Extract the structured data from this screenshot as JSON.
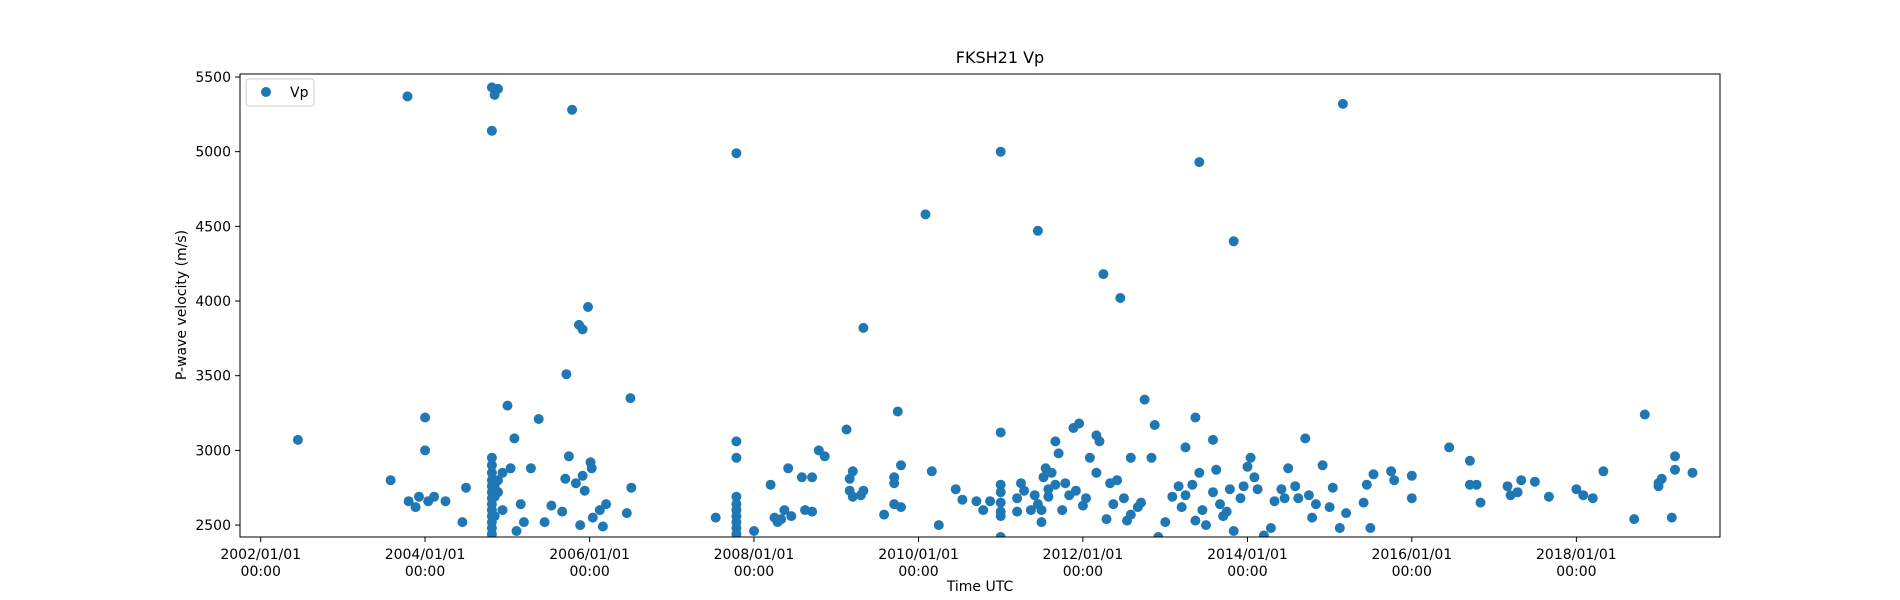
{
  "chart_data": {
    "type": "scatter",
    "title": "FKSH21 Vp",
    "xlabel": "Time UTC",
    "ylabel": "P-wave velocity (m/s)",
    "x_axis_type": "date",
    "xlim": [
      "2001-10-01",
      "2019-10-01"
    ],
    "ylim": [
      2420,
      5520
    ],
    "x_ticks": [
      {
        "date": "2002-01-01",
        "label": [
          "2002/01/01",
          "00:00"
        ]
      },
      {
        "date": "2004-01-01",
        "label": [
          "2004/01/01",
          "00:00"
        ]
      },
      {
        "date": "2006-01-01",
        "label": [
          "2006/01/01",
          "00:00"
        ]
      },
      {
        "date": "2008-01-01",
        "label": [
          "2008/01/01",
          "00:00"
        ]
      },
      {
        "date": "2010-01-01",
        "label": [
          "2010/01/01",
          "00:00"
        ]
      },
      {
        "date": "2012-01-01",
        "label": [
          "2012/01/01",
          "00:00"
        ]
      },
      {
        "date": "2014-01-01",
        "label": [
          "2014/01/01",
          "00:00"
        ]
      },
      {
        "date": "2016-01-01",
        "label": [
          "2016/01/01",
          "00:00"
        ]
      },
      {
        "date": "2018-01-01",
        "label": [
          "2018/01/01",
          "00:00"
        ]
      }
    ],
    "y_ticks": [
      2500,
      3000,
      3500,
      4000,
      4500,
      5000,
      5500
    ],
    "grid": false,
    "legend": {
      "position": "top-left",
      "entries": [
        "Vp"
      ]
    },
    "color": "#1f77b4",
    "series": [
      {
        "name": "Vp",
        "points": [
          [
            "2002-06-15",
            3070
          ],
          [
            "2003-08-01",
            2800
          ],
          [
            "2003-10-15",
            5370
          ],
          [
            "2003-10-20",
            2660
          ],
          [
            "2003-11-20",
            2620
          ],
          [
            "2003-12-05",
            2690
          ],
          [
            "2004-01-01",
            3220
          ],
          [
            "2004-01-01",
            3000
          ],
          [
            "2004-01-15",
            2660
          ],
          [
            "2004-02-10",
            2690
          ],
          [
            "2004-04-01",
            2660
          ],
          [
            "2004-06-15",
            2520
          ],
          [
            "2004-07-01",
            2750
          ],
          [
            "2004-10-24",
            5430
          ],
          [
            "2004-10-24",
            5140
          ],
          [
            "2004-10-24",
            2950
          ],
          [
            "2004-10-24",
            2900
          ],
          [
            "2004-10-24",
            2850
          ],
          [
            "2004-10-24",
            2800
          ],
          [
            "2004-10-24",
            2760
          ],
          [
            "2004-10-24",
            2720
          ],
          [
            "2004-10-24",
            2680
          ],
          [
            "2004-10-24",
            2640
          ],
          [
            "2004-10-24",
            2600
          ],
          [
            "2004-10-24",
            2560
          ],
          [
            "2004-10-24",
            2520
          ],
          [
            "2004-10-24",
            2480
          ],
          [
            "2004-10-24",
            2440
          ],
          [
            "2004-11-05",
            5380
          ],
          [
            "2004-11-05",
            2760
          ],
          [
            "2004-11-05",
            2690
          ],
          [
            "2004-11-05",
            2560
          ],
          [
            "2004-11-20",
            5420
          ],
          [
            "2004-11-20",
            2800
          ],
          [
            "2004-11-20",
            2720
          ],
          [
            "2004-12-10",
            2850
          ],
          [
            "2004-12-10",
            2600
          ],
          [
            "2005-01-01",
            3300
          ],
          [
            "2005-01-15",
            2880
          ],
          [
            "2005-02-01",
            3080
          ],
          [
            "2005-02-10",
            2460
          ],
          [
            "2005-03-01",
            2640
          ],
          [
            "2005-03-15",
            2520
          ],
          [
            "2005-04-15",
            2880
          ],
          [
            "2005-05-20",
            3210
          ],
          [
            "2005-06-15",
            2520
          ],
          [
            "2005-07-15",
            2630
          ],
          [
            "2005-09-01",
            2590
          ],
          [
            "2005-09-15",
            2810
          ],
          [
            "2005-09-20",
            3510
          ],
          [
            "2005-10-01",
            2960
          ],
          [
            "2005-10-15",
            5280
          ],
          [
            "2005-11-01",
            2780
          ],
          [
            "2005-11-15",
            3840
          ],
          [
            "2005-11-20",
            2500
          ],
          [
            "2005-12-01",
            2830
          ],
          [
            "2005-12-01",
            3810
          ],
          [
            "2005-12-10",
            2730
          ],
          [
            "2006-02-15",
            2600
          ],
          [
            "2005-12-25",
            3960
          ],
          [
            "2006-01-05",
            2920
          ],
          [
            "2006-01-10",
            2880
          ],
          [
            "2006-01-15",
            2550
          ],
          [
            "2006-03-01",
            2490
          ],
          [
            "2006-03-15",
            2640
          ],
          [
            "2006-06-15",
            2580
          ],
          [
            "2006-07-01",
            3350
          ],
          [
            "2006-07-05",
            2750
          ],
          [
            "2007-07-15",
            2550
          ],
          [
            "2007-10-15",
            4990
          ],
          [
            "2007-10-15",
            3060
          ],
          [
            "2007-10-15",
            2950
          ],
          [
            "2007-10-15",
            2690
          ],
          [
            "2007-10-15",
            2640
          ],
          [
            "2007-10-15",
            2600
          ],
          [
            "2007-10-15",
            2560
          ],
          [
            "2007-10-15",
            2520
          ],
          [
            "2007-10-15",
            2480
          ],
          [
            "2007-10-15",
            2440
          ],
          [
            "2008-01-01",
            2460
          ],
          [
            "2008-03-15",
            2770
          ],
          [
            "2008-04-01",
            2550
          ],
          [
            "2008-04-15",
            2520
          ],
          [
            "2008-05-01",
            2540
          ],
          [
            "2008-05-15",
            2600
          ],
          [
            "2008-06-01",
            2880
          ],
          [
            "2008-06-15",
            2560
          ],
          [
            "2008-08-01",
            2820
          ],
          [
            "2008-08-15",
            2600
          ],
          [
            "2008-09-15",
            2590
          ],
          [
            "2008-09-15",
            2820
          ],
          [
            "2008-10-15",
            3000
          ],
          [
            "2008-11-10",
            2960
          ],
          [
            "2009-02-15",
            3140
          ],
          [
            "2009-03-01",
            2810
          ],
          [
            "2009-03-01",
            2730
          ],
          [
            "2009-03-15",
            2860
          ],
          [
            "2009-03-15",
            2690
          ],
          [
            "2009-04-20",
            2700
          ],
          [
            "2009-05-01",
            2730
          ],
          [
            "2009-05-01",
            3820
          ],
          [
            "2009-08-01",
            2570
          ],
          [
            "2009-09-15",
            2640
          ],
          [
            "2009-09-15",
            2820
          ],
          [
            "2009-09-15",
            2780
          ],
          [
            "2009-10-01",
            3260
          ],
          [
            "2009-10-15",
            2620
          ],
          [
            "2009-10-15",
            2900
          ],
          [
            "2010-02-01",
            4580
          ],
          [
            "2010-03-01",
            2860
          ],
          [
            "2010-04-01",
            2500
          ],
          [
            "2010-06-15",
            2740
          ],
          [
            "2010-07-15",
            2670
          ],
          [
            "2010-09-15",
            2660
          ],
          [
            "2010-10-15",
            2600
          ],
          [
            "2010-11-15",
            2660
          ],
          [
            "2011-01-01",
            5000
          ],
          [
            "2011-01-01",
            3120
          ],
          [
            "2011-01-01",
            2770
          ],
          [
            "2011-01-01",
            2720
          ],
          [
            "2011-01-01",
            2650
          ],
          [
            "2011-01-01",
            2590
          ],
          [
            "2011-01-01",
            2560
          ],
          [
            "2011-01-01",
            2420
          ],
          [
            "2011-03-15",
            2590
          ],
          [
            "2011-03-15",
            2680
          ],
          [
            "2011-04-01",
            2780
          ],
          [
            "2011-04-15",
            2730
          ],
          [
            "2011-05-15",
            2600
          ],
          [
            "2011-06-01",
            2700
          ],
          [
            "2011-06-15",
            4470
          ],
          [
            "2011-06-15",
            2640
          ],
          [
            "2011-07-01",
            2520
          ],
          [
            "2011-07-01",
            2600
          ],
          [
            "2011-07-10",
            2820
          ],
          [
            "2011-07-20",
            2880
          ],
          [
            "2011-08-01",
            2740
          ],
          [
            "2011-08-01",
            2690
          ],
          [
            "2011-08-15",
            2850
          ],
          [
            "2011-09-01",
            3060
          ],
          [
            "2011-09-01",
            2770
          ],
          [
            "2011-09-15",
            2980
          ],
          [
            "2011-10-01",
            2600
          ],
          [
            "2011-10-15",
            2780
          ],
          [
            "2011-11-01",
            2700
          ],
          [
            "2011-11-20",
            3150
          ],
          [
            "2011-12-01",
            2730
          ],
          [
            "2011-12-15",
            3180
          ],
          [
            "2012-01-01",
            2630
          ],
          [
            "2012-01-15",
            2680
          ],
          [
            "2012-02-01",
            2950
          ],
          [
            "2012-03-01",
            2850
          ],
          [
            "2012-03-01",
            3100
          ],
          [
            "2012-03-15",
            3060
          ],
          [
            "2012-04-01",
            4180
          ],
          [
            "2012-04-15",
            2540
          ],
          [
            "2012-05-01",
            2780
          ],
          [
            "2012-05-15",
            2640
          ],
          [
            "2012-06-01",
            2800
          ],
          [
            "2012-06-15",
            4020
          ],
          [
            "2012-07-01",
            2680
          ],
          [
            "2012-07-15",
            2530
          ],
          [
            "2012-08-01",
            2570
          ],
          [
            "2012-08-01",
            2950
          ],
          [
            "2012-09-01",
            2620
          ],
          [
            "2012-09-15",
            2650
          ],
          [
            "2012-10-01",
            3340
          ],
          [
            "2012-11-01",
            2950
          ],
          [
            "2012-11-15",
            3170
          ],
          [
            "2012-12-01",
            2420
          ],
          [
            "2013-01-01",
            2520
          ],
          [
            "2013-02-01",
            2690
          ],
          [
            "2013-03-01",
            2760
          ],
          [
            "2013-03-15",
            2620
          ],
          [
            "2013-04-01",
            3020
          ],
          [
            "2013-04-01",
            2700
          ],
          [
            "2013-05-01",
            2770
          ],
          [
            "2013-05-15",
            3220
          ],
          [
            "2013-05-15",
            2530
          ],
          [
            "2013-06-01",
            4930
          ],
          [
            "2013-06-01",
            2850
          ],
          [
            "2013-06-15",
            2600
          ],
          [
            "2013-07-01",
            2500
          ],
          [
            "2013-08-01",
            2720
          ],
          [
            "2013-08-01",
            3070
          ],
          [
            "2013-08-15",
            2870
          ],
          [
            "2013-09-01",
            2640
          ],
          [
            "2013-09-15",
            2560
          ],
          [
            "2013-10-01",
            2590
          ],
          [
            "2013-10-15",
            2740
          ],
          [
            "2013-11-01",
            4400
          ],
          [
            "2013-11-01",
            2460
          ],
          [
            "2013-12-01",
            2680
          ],
          [
            "2013-12-15",
            2760
          ],
          [
            "2014-01-01",
            2890
          ],
          [
            "2014-01-15",
            2950
          ],
          [
            "2014-02-01",
            2820
          ],
          [
            "2014-02-15",
            2740
          ],
          [
            "2014-03-15",
            2430
          ],
          [
            "2014-04-15",
            2480
          ],
          [
            "2014-05-01",
            2660
          ],
          [
            "2014-06-01",
            2740
          ],
          [
            "2014-06-15",
            2680
          ],
          [
            "2014-07-01",
            2880
          ],
          [
            "2014-08-01",
            2760
          ],
          [
            "2014-08-15",
            2680
          ],
          [
            "2014-09-15",
            3080
          ],
          [
            "2014-10-01",
            2700
          ],
          [
            "2014-10-15",
            2550
          ],
          [
            "2014-11-01",
            2640
          ],
          [
            "2014-12-01",
            2900
          ],
          [
            "2015-01-01",
            2620
          ],
          [
            "2015-01-15",
            2750
          ],
          [
            "2015-02-15",
            2480
          ],
          [
            "2015-03-01",
            5320
          ],
          [
            "2015-03-15",
            2580
          ],
          [
            "2015-06-01",
            2650
          ],
          [
            "2015-06-15",
            2770
          ],
          [
            "2015-07-01",
            2480
          ],
          [
            "2015-07-15",
            2840
          ],
          [
            "2015-10-01",
            2860
          ],
          [
            "2015-10-15",
            2800
          ],
          [
            "2016-01-01",
            2680
          ],
          [
            "2016-01-01",
            2830
          ],
          [
            "2016-06-15",
            3020
          ],
          [
            "2016-09-15",
            2930
          ],
          [
            "2016-09-15",
            2770
          ],
          [
            "2016-10-15",
            2770
          ],
          [
            "2016-11-01",
            2650
          ],
          [
            "2017-03-01",
            2760
          ],
          [
            "2017-03-15",
            2700
          ],
          [
            "2017-04-15",
            2720
          ],
          [
            "2017-05-01",
            2800
          ],
          [
            "2017-07-01",
            2790
          ],
          [
            "2017-09-01",
            2690
          ],
          [
            "2018-01-01",
            2740
          ],
          [
            "2018-02-01",
            2700
          ],
          [
            "2018-03-15",
            2680
          ],
          [
            "2018-05-01",
            2860
          ],
          [
            "2018-09-15",
            2540
          ],
          [
            "2018-11-01",
            3240
          ],
          [
            "2019-01-01",
            2780
          ],
          [
            "2019-01-01",
            2760
          ],
          [
            "2019-01-15",
            2810
          ],
          [
            "2019-03-01",
            2550
          ],
          [
            "2019-03-15",
            2960
          ],
          [
            "2019-03-15",
            2870
          ],
          [
            "2019-06-01",
            2850
          ]
        ]
      }
    ]
  }
}
